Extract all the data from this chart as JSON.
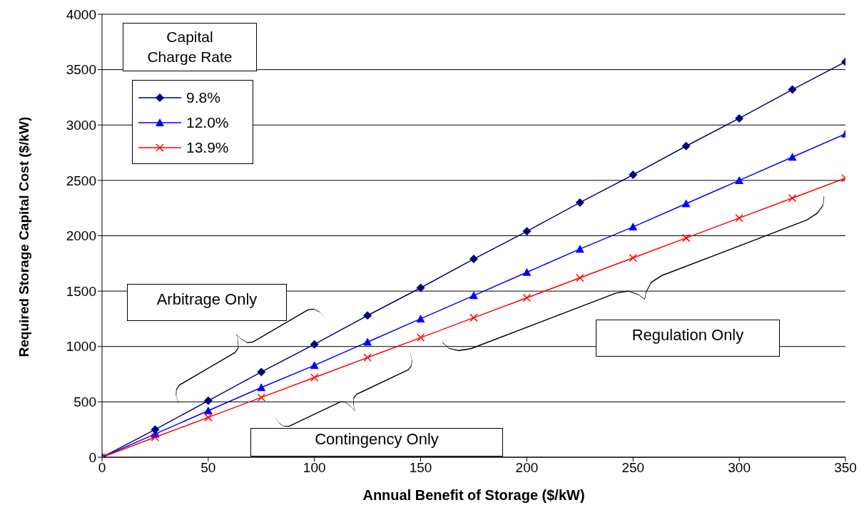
{
  "chart_data": {
    "type": "line",
    "xlabel": "Annual Benefit of Storage ($/kW)",
    "ylabel": "Required Storage Capital Cost ($/kW)",
    "legend_title": "Capital Charge Rate",
    "x": [
      0,
      25,
      50,
      75,
      100,
      125,
      150,
      175,
      200,
      225,
      250,
      275,
      300,
      325,
      350
    ],
    "series": [
      {
        "name": "9.8%",
        "color": "#000080",
        "marker": "diamond",
        "values": [
          0,
          250,
          510,
          770,
          1020,
          1280,
          1530,
          1790,
          2040,
          2300,
          2550,
          2810,
          3060,
          3320,
          3570
        ]
      },
      {
        "name": "12.0%",
        "color": "#0000ff",
        "marker": "triangle",
        "values": [
          0,
          210,
          420,
          630,
          830,
          1040,
          1250,
          1460,
          1670,
          1880,
          2080,
          2290,
          2500,
          2710,
          2920
        ]
      },
      {
        "name": "13.9%",
        "color": "#ff0000",
        "marker": "cross",
        "values": [
          0,
          180,
          360,
          540,
          720,
          900,
          1080,
          1260,
          1440,
          1620,
          1800,
          1980,
          2160,
          2340,
          2520
        ]
      }
    ],
    "xlim": [
      0,
      350
    ],
    "xticks": [
      0,
      50,
      100,
      150,
      200,
      250,
      300,
      350
    ],
    "ylim": [
      0,
      4000
    ],
    "yticks": [
      0,
      500,
      1000,
      1500,
      2000,
      2500,
      3000,
      3500,
      4000
    ],
    "grid": "y",
    "legend": "top left",
    "line_style": "solid",
    "annotations": [
      "Arbitrage Only",
      "Contingency Only",
      "Regulation Only"
    ]
  }
}
